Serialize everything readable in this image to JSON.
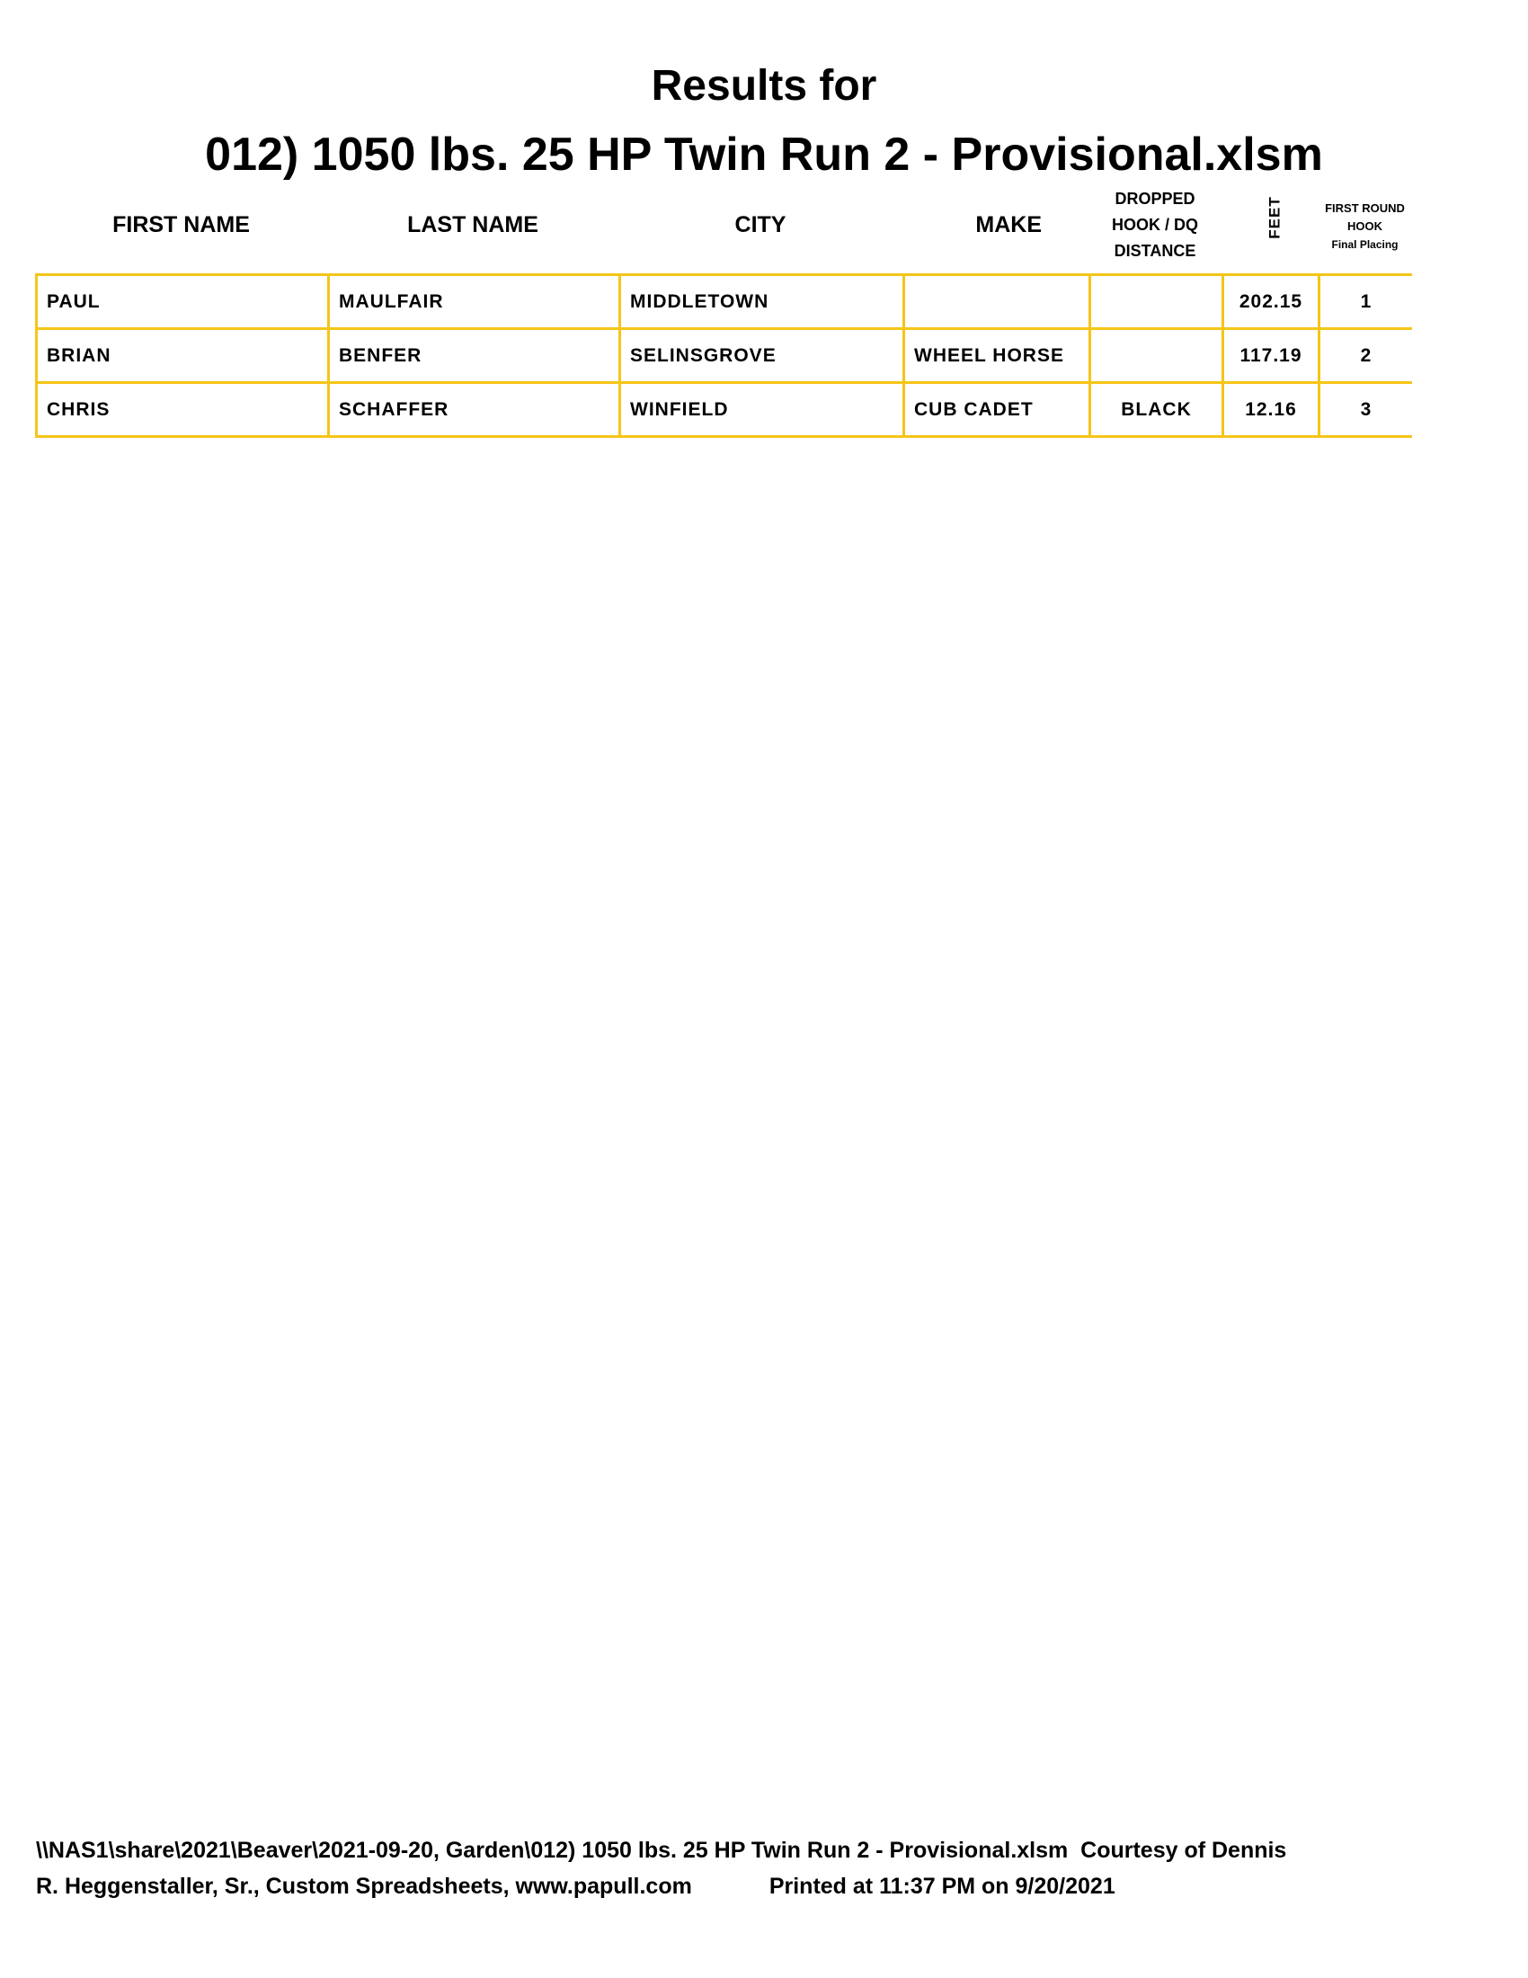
{
  "title": {
    "line1": "Results for",
    "line2": "012) 1050 lbs. 25 HP Twin Run 2 - Provisional.xlsm"
  },
  "columns": {
    "first_name": "FIRST NAME",
    "last_name": "LAST NAME",
    "city": "CITY",
    "make": "MAKE",
    "dropped": [
      "DROPPED",
      "HOOK / DQ",
      "DISTANCE"
    ],
    "feet": "FEET",
    "placing": [
      "FIRST ROUND",
      "HOOK",
      "Final Placing"
    ]
  },
  "rows": [
    {
      "first": "PAUL",
      "last": "MAULFAIR",
      "city": "MIDDLETOWN",
      "make": "",
      "dropped": "",
      "feet": "202.15",
      "place": "1"
    },
    {
      "first": "BRIAN",
      "last": "BENFER",
      "city": "SELINSGROVE",
      "make": "WHEEL HORSE",
      "dropped": "",
      "feet": "117.19",
      "place": "2"
    },
    {
      "first": "CHRIS",
      "last": "SCHAFFER",
      "city": "WINFIELD",
      "make": "CUB CADET",
      "dropped": "BLACK",
      "feet": "12.16",
      "place": "3"
    }
  ],
  "footer": {
    "line1": "\\\\NAS1\\share\\2021\\Beaver\\2021-09-20, Garden\\012) 1050 lbs. 25 HP Twin Run 2 - Provisional.xlsm  Courtesy of Dennis",
    "line2": "R. Heggenstaller, Sr., Custom Spreadsheets, www.papull.com",
    "printed": "Printed at 11:37 PM on 9/20/2021"
  },
  "colors": {
    "border": "#f5c518"
  }
}
